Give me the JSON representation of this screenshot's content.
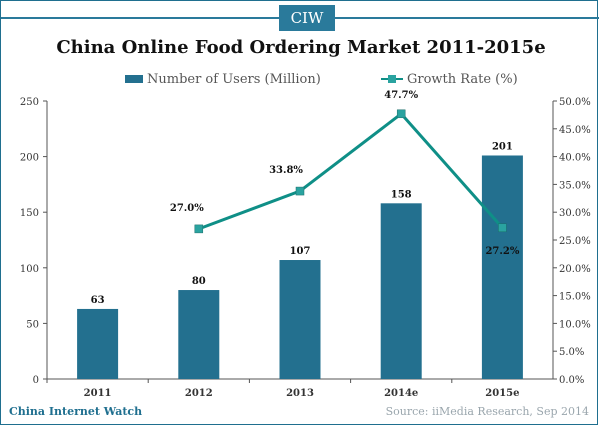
{
  "brand": {
    "logo_text": "CIW",
    "footer_left": "China Internet Watch",
    "source": "Source: iiMedia Research, Sep 2014"
  },
  "colors": {
    "bar": "#23708f",
    "line": "#0f8f87",
    "marker": "#2aa3a0",
    "axis": "#555555",
    "text": "#111111"
  },
  "chart_data": {
    "type": "bar",
    "title": "China Online Food Ordering Market 2011-2015e",
    "categories": [
      "2011",
      "2012",
      "2013",
      "2014e",
      "2015e"
    ],
    "series": [
      {
        "name": "Number of Users (Million)",
        "type": "bar",
        "values": [
          63,
          80,
          107,
          158,
          201
        ],
        "labels": [
          "63",
          "80",
          "107",
          "158",
          "201"
        ]
      },
      {
        "name": "Growth Rate (%)",
        "type": "line",
        "values": [
          null,
          27.0,
          33.8,
          47.7,
          27.2
        ],
        "labels": [
          "",
          "27.0%",
          "33.8%",
          "47.7%",
          "27.2%"
        ]
      }
    ],
    "y_left": {
      "min": 0,
      "max": 250,
      "ticks": [
        "0",
        "50",
        "100",
        "150",
        "200",
        "250"
      ]
    },
    "y_right": {
      "min": 0,
      "max": 50,
      "ticks": [
        "0.0%",
        "5.0%",
        "10.0%",
        "15.0%",
        "20.0%",
        "25.0%",
        "30.0%",
        "35.0%",
        "40.0%",
        "45.0%",
        "50.0%"
      ]
    },
    "legend_position": "top",
    "grid": false
  }
}
